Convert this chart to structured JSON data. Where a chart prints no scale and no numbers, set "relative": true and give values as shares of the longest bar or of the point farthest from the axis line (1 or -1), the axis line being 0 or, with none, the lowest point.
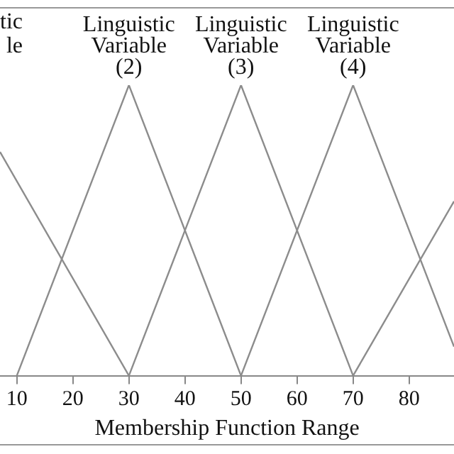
{
  "chart_data": {
    "type": "line",
    "xlabel": "Membership Function Range",
    "relative": true,
    "xlim": [
      7,
      88
    ],
    "xticks": [
      10,
      20,
      30,
      40,
      50,
      60,
      70,
      80
    ],
    "grid": false,
    "legend": false,
    "marker": "none",
    "line_style": "solid",
    "series": [
      {
        "color": "#8c8c8c",
        "x": [
          7,
          30
        ],
        "values": [
          0.77,
          0
        ]
      },
      {
        "color": "#8c8c8c",
        "x": [
          10,
          30,
          50
        ],
        "values": [
          0,
          1,
          0
        ]
      },
      {
        "color": "#8c8c8c",
        "x": [
          30,
          50,
          70
        ],
        "values": [
          0,
          1,
          0
        ]
      },
      {
        "color": "#8c8c8c",
        "x": [
          50,
          70,
          88
        ],
        "values": [
          0,
          1,
          0.1
        ]
      },
      {
        "color": "#8c8c8c",
        "x": [
          70,
          88
        ],
        "values": [
          0,
          0.6
        ]
      }
    ],
    "annotations": [
      "tic\nle",
      {
        "text": "Linguistic\nVariable\n(2)",
        "x": 30,
        "y": 1
      },
      {
        "text": "Linguistic\nVariable\n(3)",
        "x": 50,
        "y": 1
      },
      {
        "text": "Linguistic\nVariable\n(4)",
        "x": 70,
        "y": 1
      }
    ]
  }
}
